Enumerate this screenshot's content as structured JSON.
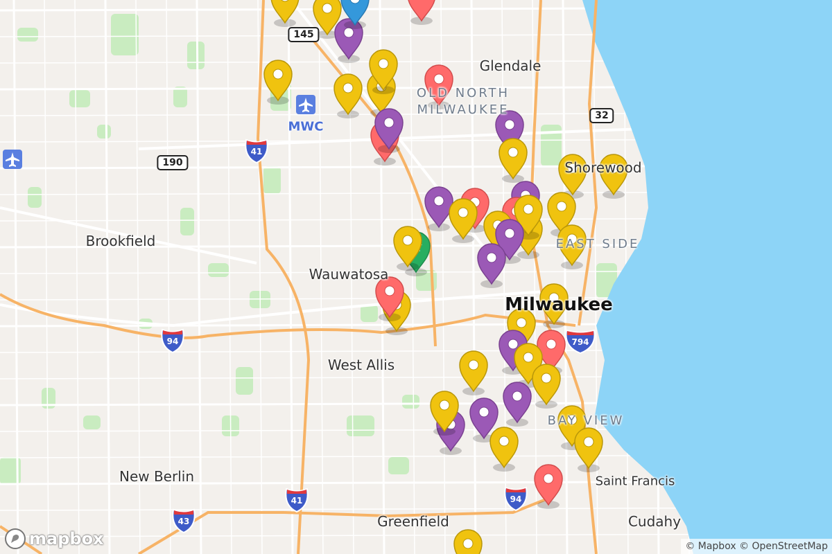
{
  "labels": {
    "glendale": "Glendale",
    "old_north_1": "OLD NORTH",
    "old_north_2": "MILWAUKEE",
    "shorewood": "Shorewood",
    "east_side": "EAST SIDE",
    "brookfield": "Brookfield",
    "wauwatosa": "Wauwatosa",
    "milwaukee": "Milwaukee",
    "west_allis": "West Allis",
    "bay_view": "BAY VIEW",
    "new_berlin": "New Berlin",
    "greenfield": "Greenfield",
    "saint_francis": "Saint Francis",
    "cudahy": "Cudahy",
    "airport": "MWC"
  },
  "shields": {
    "wi145": "145",
    "wi32": "32",
    "us190": "190",
    "i41a": "41",
    "i94a": "94",
    "i794": "794",
    "i41b": "41",
    "i94b": "94",
    "i43": "43"
  },
  "logo": "mapbox",
  "attribution": "© Mapbox © OpenStreetMap",
  "marker_colors": {
    "yellow": "#f0c30f",
    "purple": "#9b59b6",
    "red": "#ff6a6a",
    "blue": "#3498db",
    "green": "#27ae60"
  },
  "colors": {
    "land": "#f3f0ec",
    "water": "#8dd4f7",
    "park": "#c9ecc0",
    "highway": "#f7b366",
    "road": "#ffffff"
  }
}
